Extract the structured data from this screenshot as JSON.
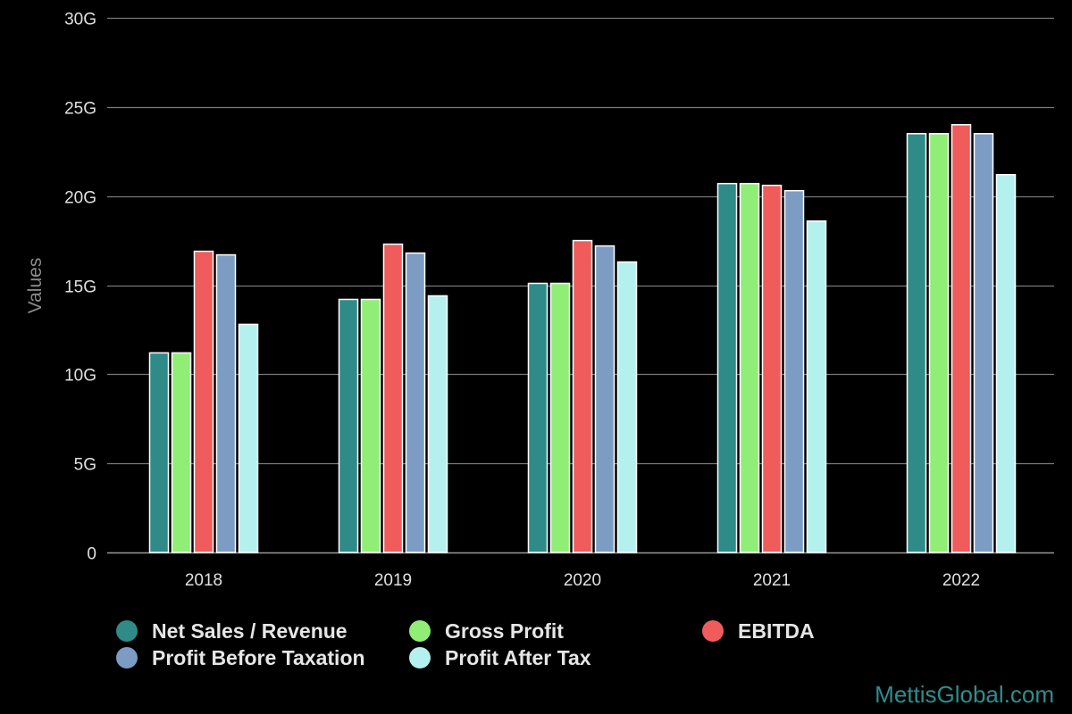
{
  "chart_data": {
    "type": "bar",
    "categories": [
      "2018",
      "2019",
      "2020",
      "2021",
      "2022"
    ],
    "series": [
      {
        "name": "Net Sales / Revenue",
        "color": "#2e8b88",
        "values": [
          11.2,
          14.2,
          15.1,
          20.7,
          23.5
        ]
      },
      {
        "name": "Gross Profit",
        "color": "#90ee77",
        "values": [
          11.2,
          14.2,
          15.1,
          20.7,
          23.5
        ]
      },
      {
        "name": "EBITDA",
        "color": "#f05b5b",
        "values": [
          16.9,
          17.3,
          17.5,
          20.6,
          24.0
        ]
      },
      {
        "name": "Profit Before Taxation",
        "color": "#7c9cc4",
        "values": [
          16.7,
          16.8,
          17.2,
          20.3,
          23.5
        ]
      },
      {
        "name": "Profit After Tax",
        "color": "#b4f0ee",
        "values": [
          12.8,
          14.4,
          16.3,
          18.6,
          21.2
        ]
      }
    ],
    "ylabel": "Values",
    "xlabel": "",
    "ylim": [
      0,
      30
    ],
    "y_ticks": [
      0,
      5,
      10,
      15,
      20,
      25,
      30
    ],
    "y_tick_labels": [
      "0",
      "5G",
      "10G",
      "15G",
      "20G",
      "25G",
      "30G"
    ],
    "unit": "G",
    "grid": true,
    "legend_position": "bottom-left"
  },
  "credit": "MettisGlobal.com"
}
